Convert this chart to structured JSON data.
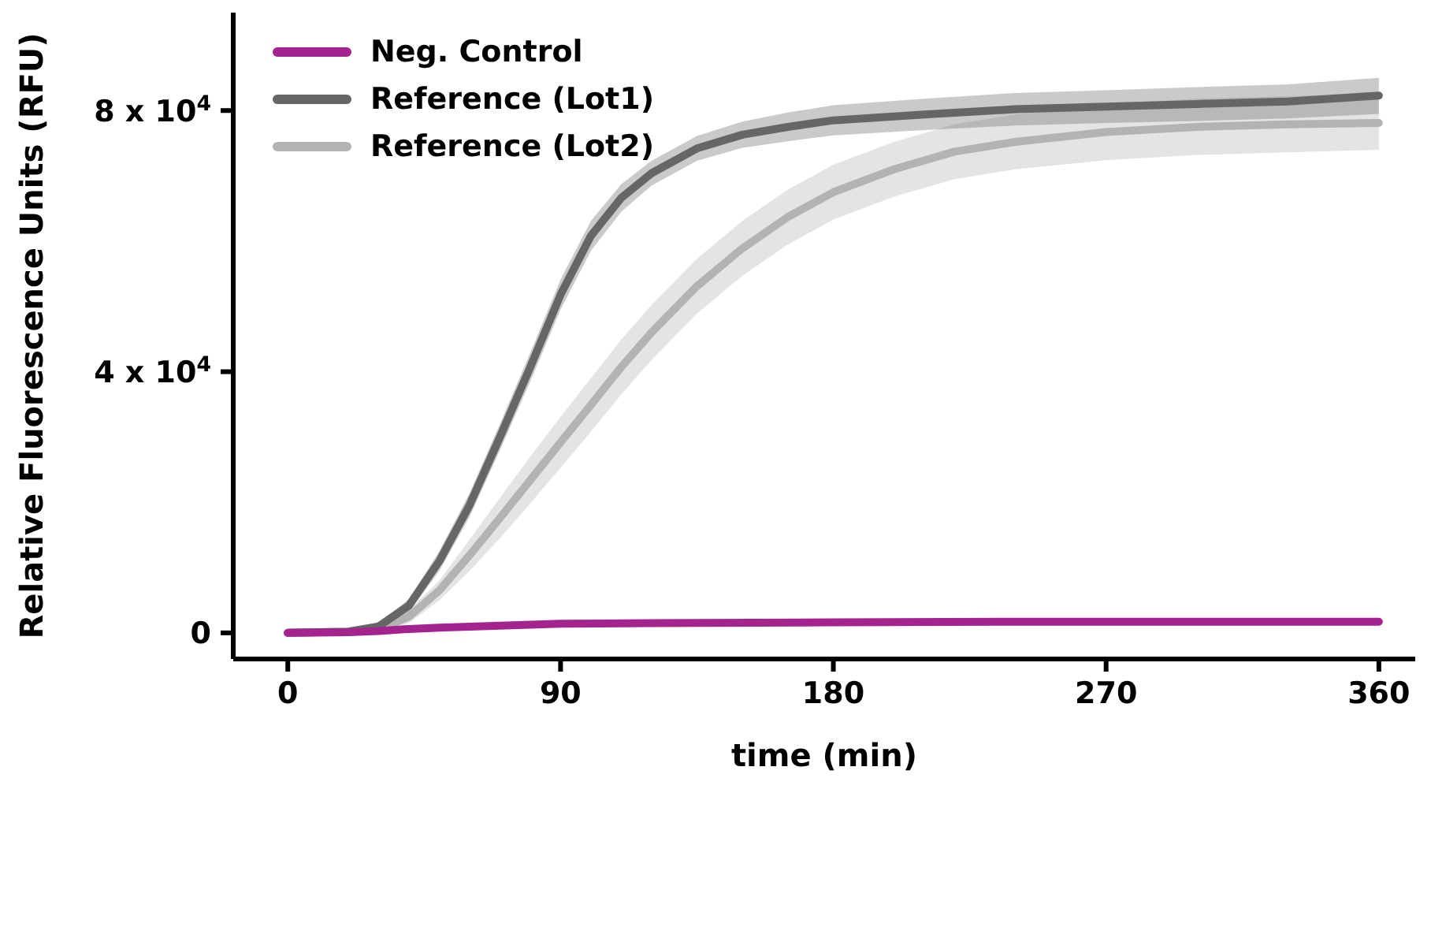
{
  "chart_data": {
    "type": "line",
    "xlabel": "time (min)",
    "ylabel": "Relative Fluorescence Units (RFU)",
    "xlim": [
      -18,
      372
    ],
    "xticks": [
      0,
      90,
      180,
      270,
      360
    ],
    "ylim": [
      -4000,
      95000
    ],
    "yticks": [
      0,
      {
        "value": 40000,
        "label": "4 x 10$^{4}$"
      },
      {
        "value": 80000,
        "label": "8 x 10$^{4}$"
      }
    ],
    "grid": false,
    "legend": "top left",
    "marker": "none",
    "line_style": "solid",
    "series": [
      {
        "name": "Neg. Control",
        "color": "#a4238f",
        "x": [
          0,
          20,
          30,
          40,
          50,
          70,
          90,
          120,
          180,
          240,
          300,
          360
        ],
        "values": [
          0,
          100,
          300,
          600,
          800,
          1100,
          1400,
          1500,
          1600,
          1700,
          1700,
          1700
        ]
      },
      {
        "name": "Reference (Lot1)",
        "color": "#666666",
        "x": [
          0,
          20,
          30,
          40,
          50,
          60,
          70,
          80,
          90,
          100,
          110,
          120,
          135,
          150,
          165,
          180,
          210,
          240,
          270,
          300,
          330,
          360
        ],
        "values": [
          0,
          200,
          1000,
          4200,
          11000,
          19600,
          30000,
          40700,
          51800,
          60800,
          66600,
          70400,
          74200,
          76300,
          77500,
          78500,
          79400,
          80200,
          80600,
          81000,
          81400,
          82300
        ],
        "lower": [
          0,
          100,
          600,
          3200,
          9500,
          17800,
          28000,
          38500,
          49500,
          58500,
          64500,
          68500,
          72300,
          74300,
          75300,
          76200,
          77000,
          77700,
          78100,
          78400,
          78800,
          79500
        ],
        "upper": [
          0,
          300,
          1400,
          5200,
          12500,
          21400,
          32000,
          42900,
          54100,
          63100,
          68700,
          72300,
          76100,
          78300,
          79700,
          80800,
          81800,
          82700,
          83100,
          83600,
          84000,
          85000
        ]
      },
      {
        "name": "Reference (Lot2)",
        "color": "#b3b3b3",
        "x": [
          0,
          20,
          30,
          40,
          50,
          60,
          70,
          80,
          90,
          100,
          110,
          120,
          135,
          150,
          165,
          180,
          200,
          220,
          240,
          270,
          300,
          330,
          360
        ],
        "values": [
          0,
          100,
          500,
          2500,
          6500,
          11900,
          17600,
          23400,
          29200,
          34900,
          40700,
          46000,
          53100,
          58900,
          63700,
          67500,
          71000,
          73700,
          75200,
          76700,
          77500,
          77900,
          78100
        ],
        "lower": [
          0,
          50,
          200,
          1500,
          5000,
          9500,
          14500,
          19800,
          25300,
          30800,
          36500,
          41800,
          48900,
          54700,
          59500,
          63300,
          66800,
          69500,
          71000,
          72400,
          73200,
          73600,
          74000
        ],
        "upper": [
          0,
          150,
          800,
          3500,
          8000,
          14300,
          20700,
          27000,
          33100,
          39000,
          44900,
          50200,
          57300,
          63100,
          67900,
          71700,
          75200,
          77900,
          79400,
          81000,
          81800,
          82200,
          82600
        ]
      }
    ]
  }
}
